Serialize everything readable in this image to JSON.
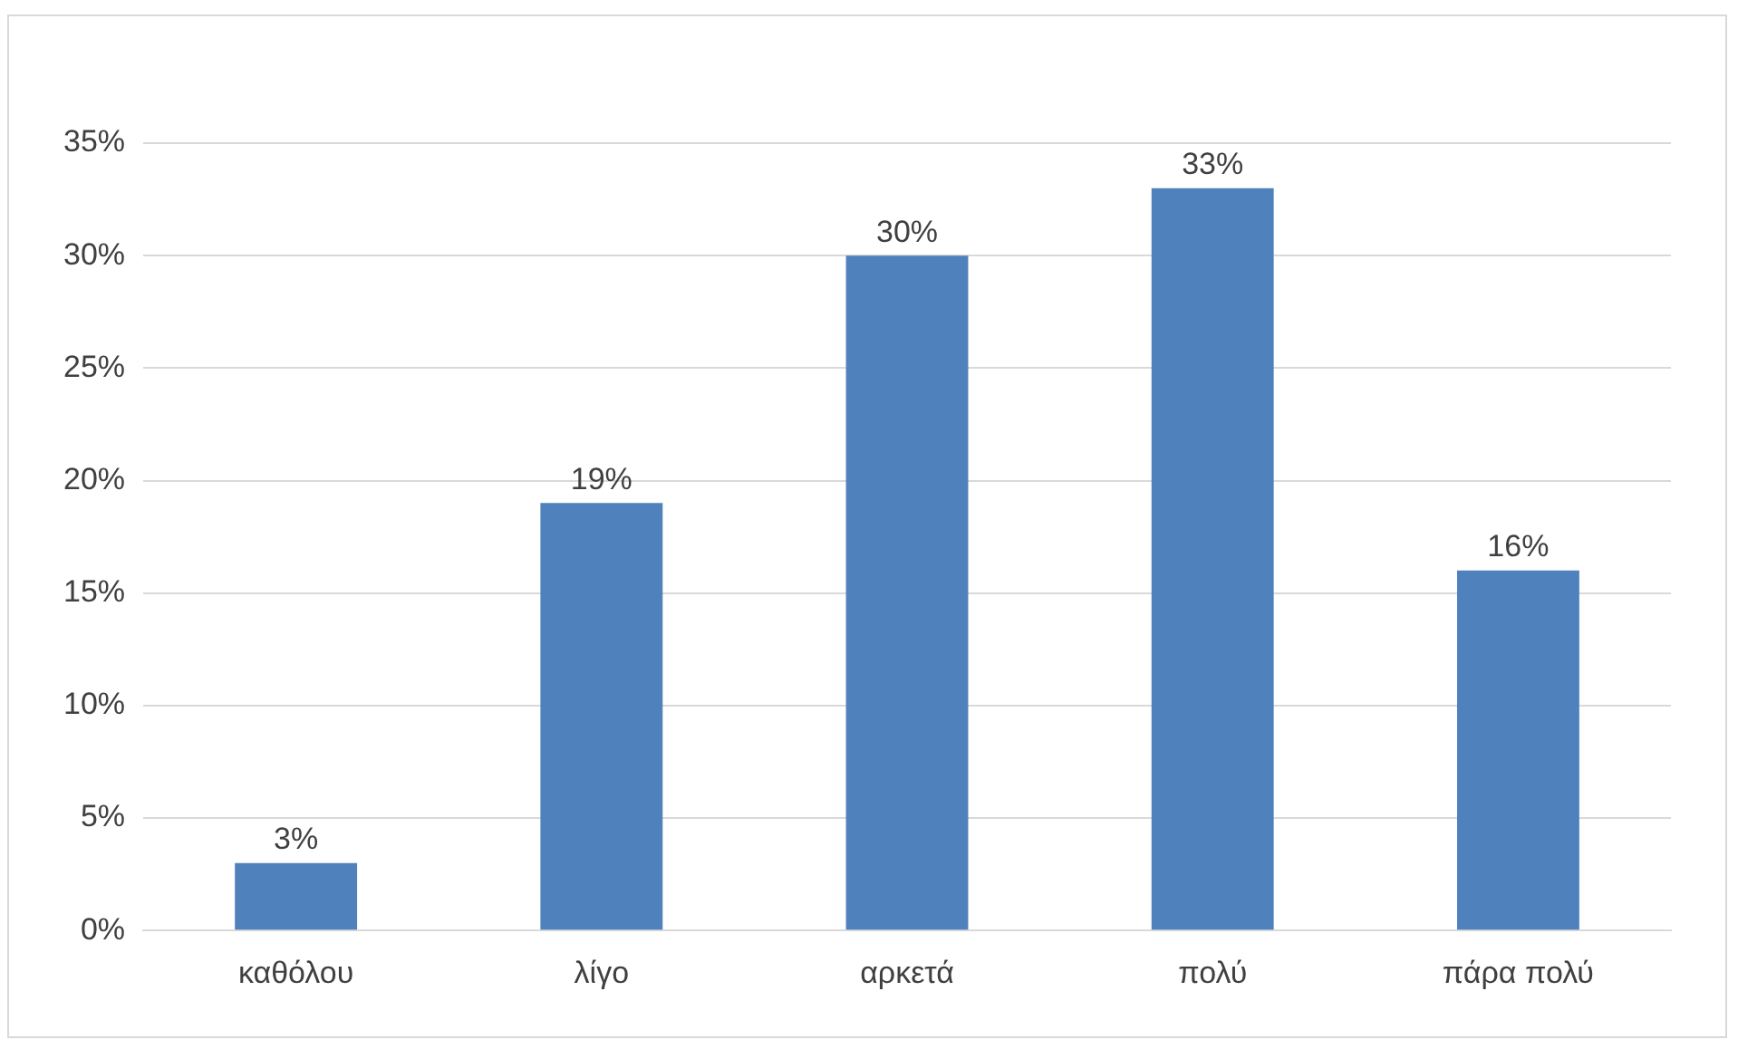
{
  "chart_data": {
    "type": "bar",
    "categories": [
      "καθόλου",
      "λίγο",
      "αρκετά",
      "πολύ",
      "πάρα πολύ"
    ],
    "values": [
      3,
      19,
      30,
      33,
      16
    ],
    "value_labels": [
      "3%",
      "19%",
      "30%",
      "33%",
      "16%"
    ],
    "color": "#4f81bd",
    "ylim": [
      0,
      35
    ],
    "yticks": [
      {
        "value": 0,
        "label": "0%"
      },
      {
        "value": 5,
        "label": "5%"
      },
      {
        "value": 10,
        "label": "10%"
      },
      {
        "value": 15,
        "label": "15%"
      },
      {
        "value": 20,
        "label": "20%"
      },
      {
        "value": 25,
        "label": "25%"
      },
      {
        "value": 30,
        "label": "30%"
      },
      {
        "value": 35,
        "label": "35%"
      }
    ],
    "grid": "y"
  }
}
